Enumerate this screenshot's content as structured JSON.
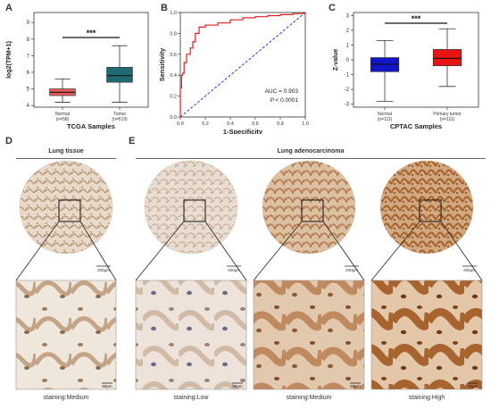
{
  "panels": {
    "A": "A",
    "B": "B",
    "C": "C",
    "D": "D",
    "E": "E"
  },
  "chart_data": [
    {
      "id": "A",
      "type": "boxplot",
      "ylabel": "log2(TPM+1)",
      "xlabel": "TCGA Samples",
      "yticks": [
        4,
        5,
        6,
        7,
        8,
        9
      ],
      "ylim": [
        3.9,
        9.6
      ],
      "significance": "***",
      "groups": [
        {
          "name": "Normal",
          "n": "(n=58)",
          "whisker_low": 4.2,
          "q1": 4.6,
          "median": 4.8,
          "q3": 5.0,
          "whisker_high": 5.6,
          "color": "#e85a5a"
        },
        {
          "name": "Tumor",
          "n": "(n=519)",
          "whisker_low": 4.2,
          "q1": 5.4,
          "median": 5.8,
          "q3": 6.3,
          "whisker_high": 7.6,
          "color": "#1f6b74"
        }
      ]
    },
    {
      "id": "B",
      "type": "line",
      "xlabel": "1-Specificity",
      "ylabel": "Sensitivity",
      "xticks": [
        0.0,
        0.2,
        0.4,
        0.6,
        0.8,
        1.0
      ],
      "yticks": [
        0.0,
        0.2,
        0.4,
        0.6,
        0.8,
        1.0
      ],
      "annotation_auc": "AUC = 0.903",
      "annotation_p": "< 0.0001",
      "annotation_p_label": "P",
      "roc": [
        [
          0,
          0
        ],
        [
          0,
          0.28
        ],
        [
          0.01,
          0.4
        ],
        [
          0.02,
          0.42
        ],
        [
          0.03,
          0.52
        ],
        [
          0.05,
          0.6
        ],
        [
          0.08,
          0.66
        ],
        [
          0.1,
          0.72
        ],
        [
          0.12,
          0.8
        ],
        [
          0.15,
          0.86
        ],
        [
          0.2,
          0.88
        ],
        [
          0.3,
          0.9
        ],
        [
          0.4,
          0.93
        ],
        [
          0.5,
          0.95
        ],
        [
          0.6,
          0.96
        ],
        [
          0.7,
          0.97
        ],
        [
          0.8,
          0.98
        ],
        [
          0.9,
          0.99
        ],
        [
          1.0,
          1.0
        ]
      ],
      "roc_color": "#e02020",
      "diagonal_color": "#2040d0"
    },
    {
      "id": "C",
      "type": "boxplot",
      "ylabel": "Z-value",
      "xlabel": "CPTAC Samples",
      "yticks": [
        -3,
        -2,
        -1,
        0,
        1,
        2,
        3
      ],
      "ylim": [
        -3.2,
        3.2
      ],
      "significance": "***",
      "groups": [
        {
          "name": "Normal",
          "n": "(n=111)",
          "whisker_low": -2.8,
          "q1": -0.8,
          "median": -0.3,
          "q3": 0.15,
          "whisker_high": 1.3,
          "color": "#1414c8"
        },
        {
          "name": "Primary tumor",
          "n": "(n=111)",
          "whisker_low": -1.8,
          "q1": -0.4,
          "median": 0.1,
          "q3": 0.7,
          "whisker_high": 2.1,
          "color": "#e81414"
        }
      ]
    }
  ],
  "histology": {
    "D_header": "Lung tissue",
    "E_header": "Lung adenocarcinoma",
    "scale_top": "200μm",
    "scale_bottom": "50μm",
    "columns": [
      {
        "staining": "staining:Medium",
        "base": "#e8d9c8",
        "stain": "#b89a7c",
        "dark": "#9c7452"
      },
      {
        "staining": "staining:Low",
        "base": "#e9ddd2",
        "stain": "#c9ad95",
        "dark": "#a08468"
      },
      {
        "staining": "staining:Medium",
        "base": "#dcc0a0",
        "stain": "#b8805a",
        "dark": "#8c5a36"
      },
      {
        "staining": "staining:High",
        "base": "#d2a880",
        "stain": "#a8642e",
        "dark": "#7c4218"
      }
    ]
  }
}
